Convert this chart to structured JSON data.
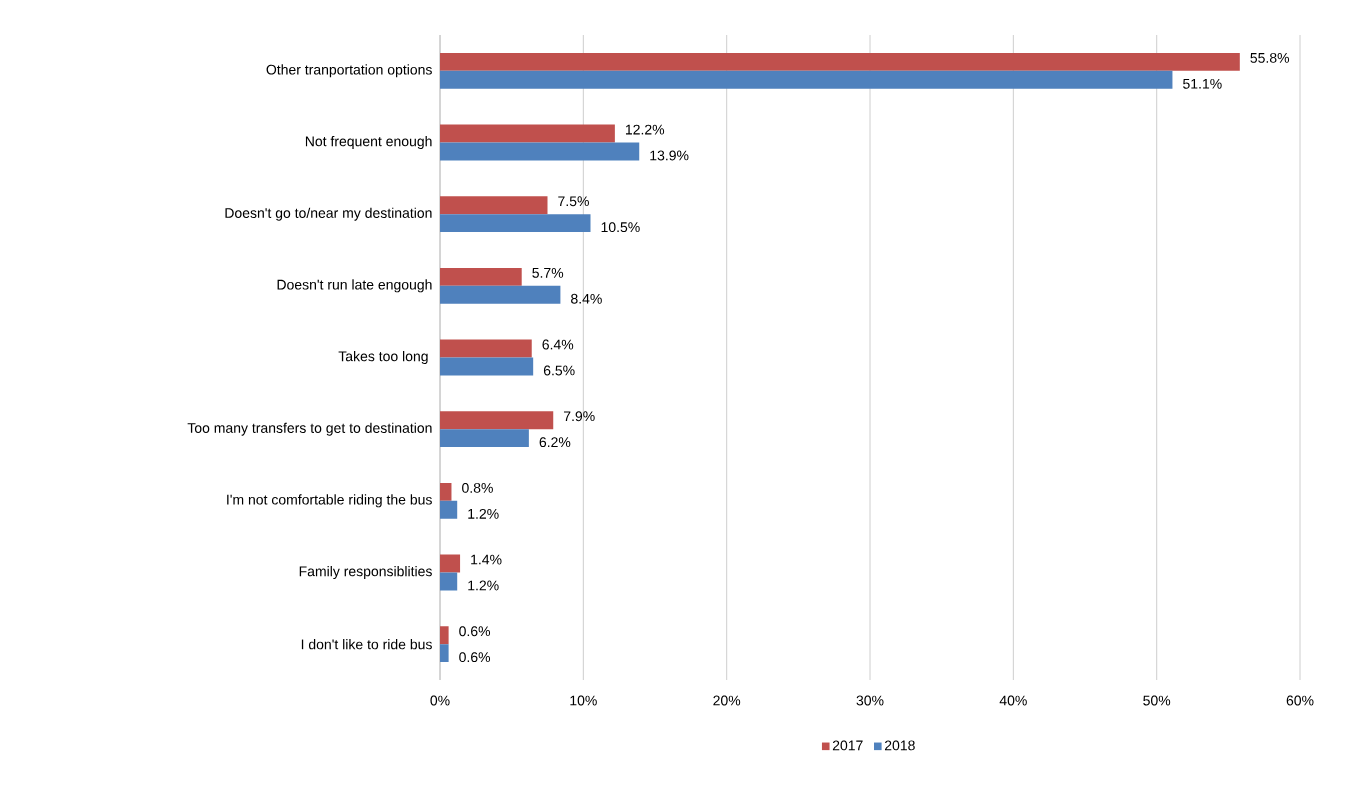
{
  "chart_data": {
    "type": "bar",
    "orientation": "horizontal",
    "categories": [
      "Other tranportation options",
      "Not frequent enough",
      "Doesn't go to/near my destination",
      "Doesn't run late engough",
      "Takes too long ",
      "Too many transfers to get to destination",
      "I'm not comfortable riding the bus",
      "Family responsiblities",
      "I don't like to ride bus"
    ],
    "series": [
      {
        "name": "2017",
        "color": "#c0504d",
        "values": [
          55.8,
          12.2,
          7.5,
          5.7,
          6.4,
          7.9,
          0.8,
          1.4,
          0.6
        ],
        "value_labels": [
          "55.8%",
          "12.2%",
          "7.5%",
          "5.7%",
          "6.4%",
          "7.9%",
          "0.8%",
          "1.4%",
          "0.6%"
        ]
      },
      {
        "name": "2018",
        "color": "#4f81bd",
        "values": [
          51.1,
          13.9,
          10.5,
          8.4,
          6.5,
          6.2,
          1.2,
          1.2,
          0.6
        ],
        "value_labels": [
          "51.1%",
          "13.9%",
          "10.5%",
          "8.4%",
          "6.5%",
          "6.2%",
          "1.2%",
          "1.2%",
          "0.6%"
        ]
      }
    ],
    "xlim": [
      0,
      60
    ],
    "xticks": [
      {
        "value": 0,
        "label": "0%"
      },
      {
        "value": 10,
        "label": "10%"
      },
      {
        "value": 20,
        "label": "20%"
      },
      {
        "value": 30,
        "label": "30%"
      },
      {
        "value": 40,
        "label": "40%"
      },
      {
        "value": 50,
        "label": "50%"
      },
      {
        "value": 60,
        "label": "60%"
      }
    ],
    "grid": "x",
    "legend": "bottom"
  }
}
